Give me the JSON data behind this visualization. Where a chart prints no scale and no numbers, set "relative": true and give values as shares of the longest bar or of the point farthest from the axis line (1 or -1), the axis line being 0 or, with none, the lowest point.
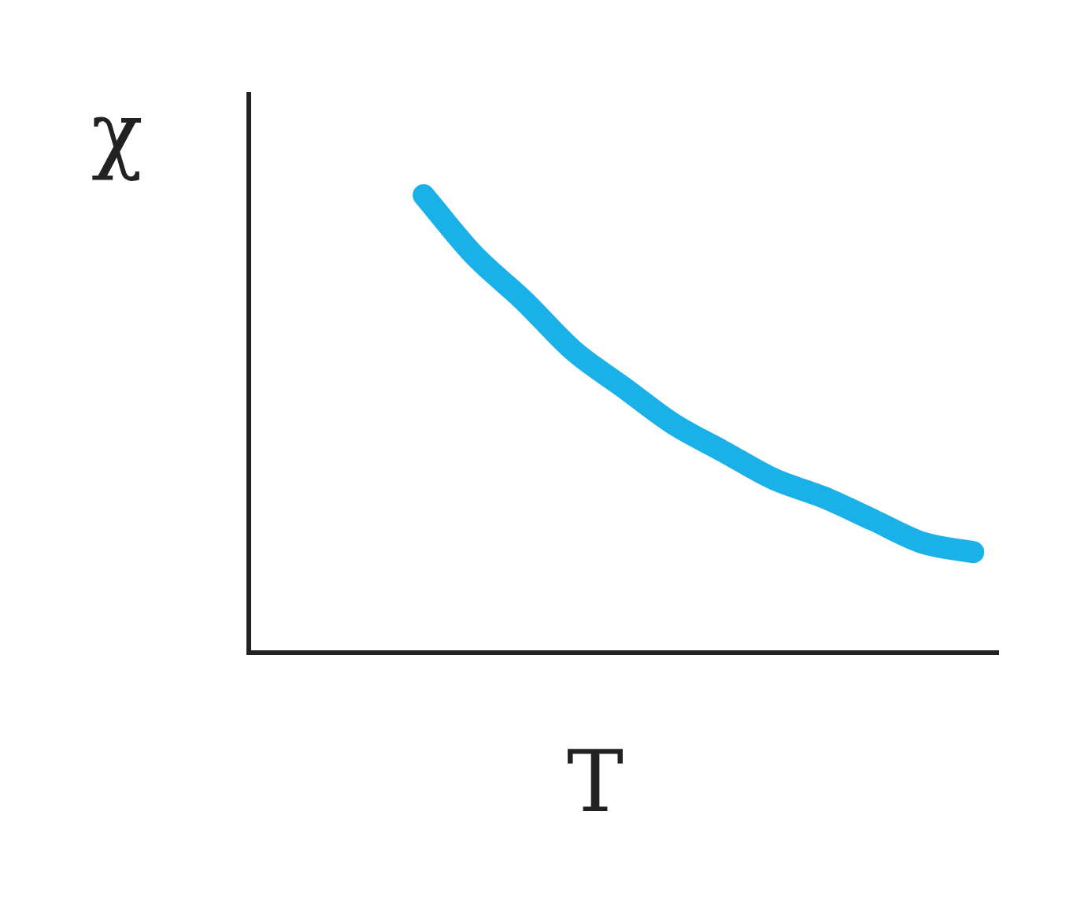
{
  "chart_data": {
    "type": "line",
    "xlabel": "T",
    "ylabel": "χ",
    "relative": true,
    "marker": "none",
    "line_style": "solid",
    "categories": [
      null,
      null,
      null,
      null,
      null,
      null,
      null,
      null,
      null,
      null,
      null,
      null,
      null,
      null,
      null
    ],
    "series": [
      {
        "color": "#1ab0e8",
        "values": [
          null,
          null,
          null,
          1,
          0.87,
          0.77,
          0.66,
          0.58,
          0.5,
          0.44,
          0.38,
          0.34,
          0.29,
          0.24,
          0.22
        ]
      }
    ]
  }
}
